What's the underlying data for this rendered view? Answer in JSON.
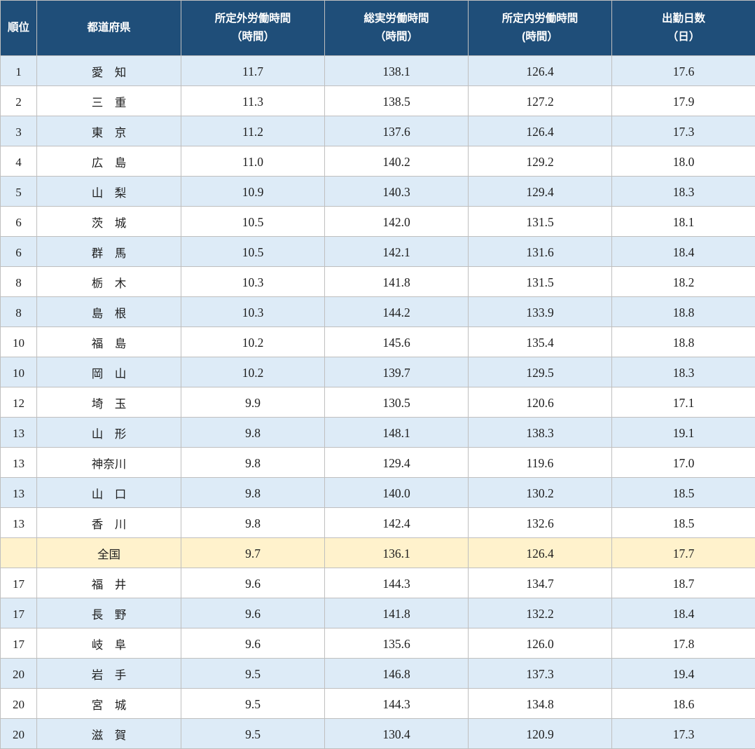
{
  "table": {
    "columns": [
      {
        "line1": "順位",
        "line2": ""
      },
      {
        "line1": "都道府県",
        "line2": ""
      },
      {
        "line1": "所定外労働時間",
        "line2": "（時間）"
      },
      {
        "line1": "総実労働時間",
        "line2": "（時間）"
      },
      {
        "line1": "所定内労働時間",
        "line2": "(時間）"
      },
      {
        "line1": "出勤日数",
        "line2": "（日）"
      }
    ],
    "rows": [
      {
        "rank": "1",
        "prefecture": "愛　知",
        "overtime": "11.7",
        "total": "138.1",
        "scheduled": "126.4",
        "days": "17.6",
        "highlight": false
      },
      {
        "rank": "2",
        "prefecture": "三　重",
        "overtime": "11.3",
        "total": "138.5",
        "scheduled": "127.2",
        "days": "17.9",
        "highlight": false
      },
      {
        "rank": "3",
        "prefecture": "東　京",
        "overtime": "11.2",
        "total": "137.6",
        "scheduled": "126.4",
        "days": "17.3",
        "highlight": false
      },
      {
        "rank": "4",
        "prefecture": "広　島",
        "overtime": "11.0",
        "total": "140.2",
        "scheduled": "129.2",
        "days": "18.0",
        "highlight": false
      },
      {
        "rank": "5",
        "prefecture": "山　梨",
        "overtime": "10.9",
        "total": "140.3",
        "scheduled": "129.4",
        "days": "18.3",
        "highlight": false
      },
      {
        "rank": "6",
        "prefecture": "茨　城",
        "overtime": "10.5",
        "total": "142.0",
        "scheduled": "131.5",
        "days": "18.1",
        "highlight": false
      },
      {
        "rank": "6",
        "prefecture": "群　馬",
        "overtime": "10.5",
        "total": "142.1",
        "scheduled": "131.6",
        "days": "18.4",
        "highlight": false
      },
      {
        "rank": "8",
        "prefecture": "栃　木",
        "overtime": "10.3",
        "total": "141.8",
        "scheduled": "131.5",
        "days": "18.2",
        "highlight": false
      },
      {
        "rank": "8",
        "prefecture": "島　根",
        "overtime": "10.3",
        "total": "144.2",
        "scheduled": "133.9",
        "days": "18.8",
        "highlight": false
      },
      {
        "rank": "10",
        "prefecture": "福　島",
        "overtime": "10.2",
        "total": "145.6",
        "scheduled": "135.4",
        "days": "18.8",
        "highlight": false
      },
      {
        "rank": "10",
        "prefecture": "岡　山",
        "overtime": "10.2",
        "total": "139.7",
        "scheduled": "129.5",
        "days": "18.3",
        "highlight": false
      },
      {
        "rank": "12",
        "prefecture": "埼　玉",
        "overtime": "9.9",
        "total": "130.5",
        "scheduled": "120.6",
        "days": "17.1",
        "highlight": false
      },
      {
        "rank": "13",
        "prefecture": "山　形",
        "overtime": "9.8",
        "total": "148.1",
        "scheduled": "138.3",
        "days": "19.1",
        "highlight": false
      },
      {
        "rank": "13",
        "prefecture": "神奈川",
        "overtime": "9.8",
        "total": "129.4",
        "scheduled": "119.6",
        "days": "17.0",
        "highlight": false
      },
      {
        "rank": "13",
        "prefecture": "山　口",
        "overtime": "9.8",
        "total": "140.0",
        "scheduled": "130.2",
        "days": "18.5",
        "highlight": false
      },
      {
        "rank": "13",
        "prefecture": "香　川",
        "overtime": "9.8",
        "total": "142.4",
        "scheduled": "132.6",
        "days": "18.5",
        "highlight": false
      },
      {
        "rank": "",
        "prefecture": "全国",
        "overtime": "9.7",
        "total": "136.1",
        "scheduled": "126.4",
        "days": "17.7",
        "highlight": true
      },
      {
        "rank": "17",
        "prefecture": "福　井",
        "overtime": "9.6",
        "total": "144.3",
        "scheduled": "134.7",
        "days": "18.7",
        "highlight": false
      },
      {
        "rank": "17",
        "prefecture": "長　野",
        "overtime": "9.6",
        "total": "141.8",
        "scheduled": "132.2",
        "days": "18.4",
        "highlight": false
      },
      {
        "rank": "17",
        "prefecture": "岐　阜",
        "overtime": "9.6",
        "total": "135.6",
        "scheduled": "126.0",
        "days": "17.8",
        "highlight": false
      },
      {
        "rank": "20",
        "prefecture": "岩　手",
        "overtime": "9.5",
        "total": "146.8",
        "scheduled": "137.3",
        "days": "19.4",
        "highlight": false
      },
      {
        "rank": "20",
        "prefecture": "宮　城",
        "overtime": "9.5",
        "total": "144.3",
        "scheduled": "134.8",
        "days": "18.6",
        "highlight": false
      },
      {
        "rank": "20",
        "prefecture": "滋　賀",
        "overtime": "9.5",
        "total": "130.4",
        "scheduled": "120.9",
        "days": "17.3",
        "highlight": false
      }
    ]
  },
  "colors": {
    "header_bg": "#1F4E79",
    "header_text": "#FFFFFF",
    "stripe_blue": "#DDEBF7",
    "stripe_white": "#FFFFFF",
    "highlight_yellow": "#FFF2CC",
    "border": "#BFBFBF",
    "body_text": "#1D1D1D"
  },
  "chart_data": {
    "type": "table",
    "title": "",
    "columns": [
      "順位",
      "都道府県",
      "所定外労働時間（時間）",
      "総実労働時間（時間）",
      "所定内労働時間(時間）",
      "出勤日数（日）"
    ],
    "rows": [
      [
        1,
        "愛知",
        11.7,
        138.1,
        126.4,
        17.6
      ],
      [
        2,
        "三重",
        11.3,
        138.5,
        127.2,
        17.9
      ],
      [
        3,
        "東京",
        11.2,
        137.6,
        126.4,
        17.3
      ],
      [
        4,
        "広島",
        11.0,
        140.2,
        129.2,
        18.0
      ],
      [
        5,
        "山梨",
        10.9,
        140.3,
        129.4,
        18.3
      ],
      [
        6,
        "茨城",
        10.5,
        142.0,
        131.5,
        18.1
      ],
      [
        6,
        "群馬",
        10.5,
        142.1,
        131.6,
        18.4
      ],
      [
        8,
        "栃木",
        10.3,
        141.8,
        131.5,
        18.2
      ],
      [
        8,
        "島根",
        10.3,
        144.2,
        133.9,
        18.8
      ],
      [
        10,
        "福島",
        10.2,
        145.6,
        135.4,
        18.8
      ],
      [
        10,
        "岡山",
        10.2,
        139.7,
        129.5,
        18.3
      ],
      [
        12,
        "埼玉",
        9.9,
        130.5,
        120.6,
        17.1
      ],
      [
        13,
        "山形",
        9.8,
        148.1,
        138.3,
        19.1
      ],
      [
        13,
        "神奈川",
        9.8,
        129.4,
        119.6,
        17.0
      ],
      [
        13,
        "山口",
        9.8,
        140.0,
        130.2,
        18.5
      ],
      [
        13,
        "香川",
        9.8,
        142.4,
        132.6,
        18.5
      ],
      [
        null,
        "全国",
        9.7,
        136.1,
        126.4,
        17.7
      ],
      [
        17,
        "福井",
        9.6,
        144.3,
        134.7,
        18.7
      ],
      [
        17,
        "長野",
        9.6,
        141.8,
        132.2,
        18.4
      ],
      [
        17,
        "岐阜",
        9.6,
        135.6,
        126.0,
        17.8
      ],
      [
        20,
        "岩手",
        9.5,
        146.8,
        137.3,
        19.4
      ],
      [
        20,
        "宮城",
        9.5,
        144.3,
        134.8,
        18.6
      ],
      [
        20,
        "滋賀",
        9.5,
        130.4,
        120.9,
        17.3
      ]
    ],
    "notes": "全国 (national average) row is highlighted in light yellow; data rows alternate light-blue/white striping"
  }
}
